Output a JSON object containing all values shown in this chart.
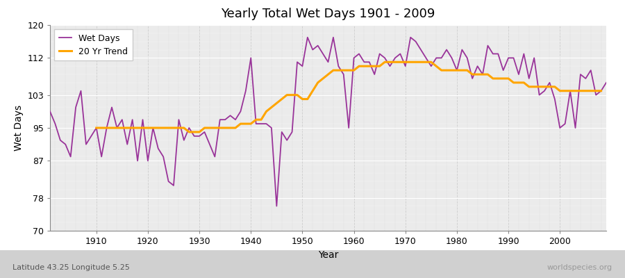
{
  "title": "Yearly Total Wet Days 1901 - 2009",
  "xlabel": "Year",
  "ylabel": "Wet Days",
  "subtitle": "Latitude 43.25 Longitude 5.25",
  "watermark": "worldspecies.org",
  "ylim": [
    70,
    120
  ],
  "yticks": [
    70,
    78,
    87,
    95,
    103,
    112,
    120
  ],
  "xlim": [
    1901,
    2009
  ],
  "wet_days_color": "#993399",
  "trend_color": "#FFA500",
  "fig_bg_color": "#FFFFFF",
  "plot_bg_color": "#EBEBEB",
  "bottom_bg_color": "#D8D8D8",
  "legend_labels": [
    "Wet Days",
    "20 Yr Trend"
  ],
  "years": [
    1901,
    1902,
    1903,
    1904,
    1905,
    1906,
    1907,
    1908,
    1909,
    1910,
    1911,
    1912,
    1913,
    1914,
    1915,
    1916,
    1917,
    1918,
    1919,
    1920,
    1921,
    1922,
    1923,
    1924,
    1925,
    1926,
    1927,
    1928,
    1929,
    1930,
    1931,
    1932,
    1933,
    1934,
    1935,
    1936,
    1937,
    1938,
    1939,
    1940,
    1941,
    1942,
    1943,
    1944,
    1945,
    1946,
    1947,
    1948,
    1949,
    1950,
    1951,
    1952,
    1953,
    1954,
    1955,
    1956,
    1957,
    1958,
    1959,
    1960,
    1961,
    1962,
    1963,
    1964,
    1965,
    1966,
    1967,
    1968,
    1969,
    1970,
    1971,
    1972,
    1973,
    1974,
    1975,
    1976,
    1977,
    1978,
    1979,
    1980,
    1981,
    1982,
    1983,
    1984,
    1985,
    1986,
    1987,
    1988,
    1989,
    1990,
    1991,
    1992,
    1993,
    1994,
    1995,
    1996,
    1997,
    1998,
    1999,
    2000,
    2001,
    2002,
    2003,
    2004,
    2005,
    2006,
    2007,
    2008,
    2009
  ],
  "wet_days": [
    99,
    96,
    92,
    91,
    88,
    100,
    104,
    91,
    93,
    95,
    88,
    95,
    100,
    95,
    97,
    91,
    97,
    87,
    97,
    87,
    95,
    90,
    88,
    82,
    81,
    97,
    92,
    95,
    93,
    93,
    94,
    91,
    88,
    97,
    97,
    98,
    97,
    99,
    104,
    112,
    96,
    96,
    96,
    95,
    76,
    94,
    92,
    94,
    111,
    110,
    117,
    114,
    115,
    113,
    111,
    117,
    110,
    108,
    95,
    112,
    113,
    111,
    111,
    108,
    113,
    112,
    110,
    112,
    113,
    110,
    117,
    116,
    114,
    112,
    110,
    112,
    112,
    114,
    112,
    109,
    114,
    112,
    107,
    110,
    108,
    115,
    113,
    113,
    109,
    112,
    112,
    108,
    113,
    107,
    112,
    103,
    104,
    106,
    102,
    95,
    96,
    104,
    95,
    108,
    107,
    109,
    103,
    104,
    106
  ],
  "trend": [
    null,
    null,
    null,
    null,
    null,
    null,
    null,
    null,
    null,
    95,
    95,
    95,
    95,
    95,
    95,
    95,
    95,
    95,
    95,
    95,
    95,
    95,
    95,
    95,
    95,
    95,
    95,
    94,
    94,
    94,
    95,
    95,
    95,
    95,
    95,
    95,
    95,
    96,
    96,
    96,
    97,
    97,
    99,
    100,
    101,
    102,
    103,
    103,
    103,
    102,
    102,
    104,
    106,
    107,
    108,
    109,
    109,
    109,
    109,
    109,
    110,
    110,
    110,
    110,
    110,
    111,
    111,
    111,
    111,
    111,
    111,
    111,
    111,
    111,
    111,
    110,
    109,
    109,
    109,
    109,
    109,
    109,
    108,
    108,
    108,
    108,
    107,
    107,
    107,
    107,
    106,
    106,
    106,
    105,
    105,
    105,
    105,
    105,
    105,
    104,
    104,
    104,
    104,
    104,
    104,
    104,
    104,
    104,
    null
  ]
}
